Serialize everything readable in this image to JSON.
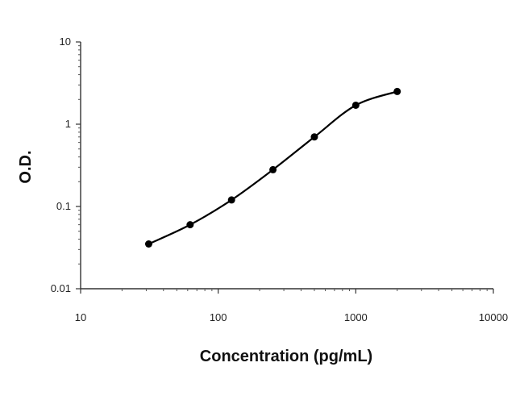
{
  "chart_data": {
    "type": "scatter",
    "title": "",
    "xlabel": "Concentration (pg/mL)",
    "ylabel": "O.D.",
    "x_scale": "log",
    "y_scale": "log",
    "xlim": [
      10,
      10000
    ],
    "ylim": [
      0.01,
      10
    ],
    "x_ticks": [
      10,
      100,
      1000,
      10000
    ],
    "x_tick_labels": [
      "10",
      "100",
      "1000",
      "10000"
    ],
    "y_ticks": [
      0.01,
      0.1,
      1,
      10
    ],
    "y_tick_labels": [
      "0.01",
      "0.1",
      "1",
      "10"
    ],
    "grid": false,
    "legend": "none",
    "series": [
      {
        "x": [
          31.25,
          62.5,
          125,
          250,
          500,
          1000,
          2000
        ],
        "y": [
          0.035,
          0.06,
          0.12,
          0.28,
          0.7,
          1.7,
          2.5
        ],
        "marker": "circle",
        "line": "smooth",
        "color": "#000000"
      }
    ]
  }
}
